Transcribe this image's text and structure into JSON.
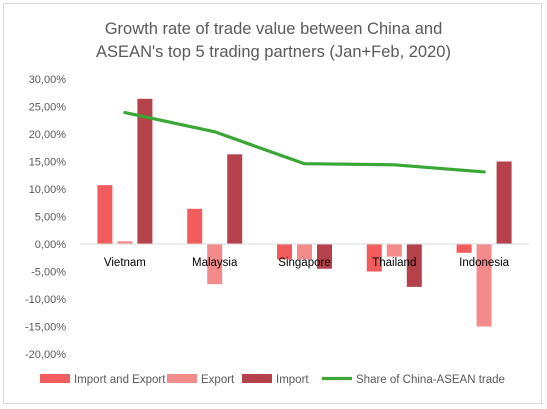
{
  "chart_data": {
    "type": "bar",
    "title_lines": [
      "Growth rate of trade value between China and",
      "ASEAN's top 5 trading partners (Jan+Feb, 2020)"
    ],
    "categories": [
      "Vietnam",
      "Malaysia",
      "Singapore",
      "Thailand",
      "Indonesia"
    ],
    "y_ticks": [
      "30,00%",
      "25,00%",
      "20,00%",
      "15,00%",
      "10,00%",
      "5,00%",
      "0,00%",
      "-5,00%",
      "-10,00%",
      "-15,00%",
      "-20,00%"
    ],
    "ylim": [
      -20,
      30
    ],
    "y_unit": "%",
    "grid": false,
    "legend_position": "bottom",
    "series": [
      {
        "name": "Import and Export",
        "kind": "bar",
        "color": "#f25c5c",
        "values": [
          10.7,
          6.4,
          -2.8,
          -5.0,
          -1.6
        ]
      },
      {
        "name": "Export",
        "kind": "bar",
        "color": "#f48b8b",
        "values": [
          0.5,
          -7.3,
          -2.8,
          -2.3,
          -15.0
        ]
      },
      {
        "name": "Import",
        "kind": "bar",
        "color": "#b5414a",
        "values": [
          26.4,
          16.3,
          -4.5,
          -7.8,
          15.0
        ]
      },
      {
        "name": "Share of China-ASEAN trade",
        "kind": "line",
        "color": "#3aa635",
        "values": [
          23.9,
          20.4,
          14.6,
          14.4,
          13.1
        ]
      }
    ]
  }
}
